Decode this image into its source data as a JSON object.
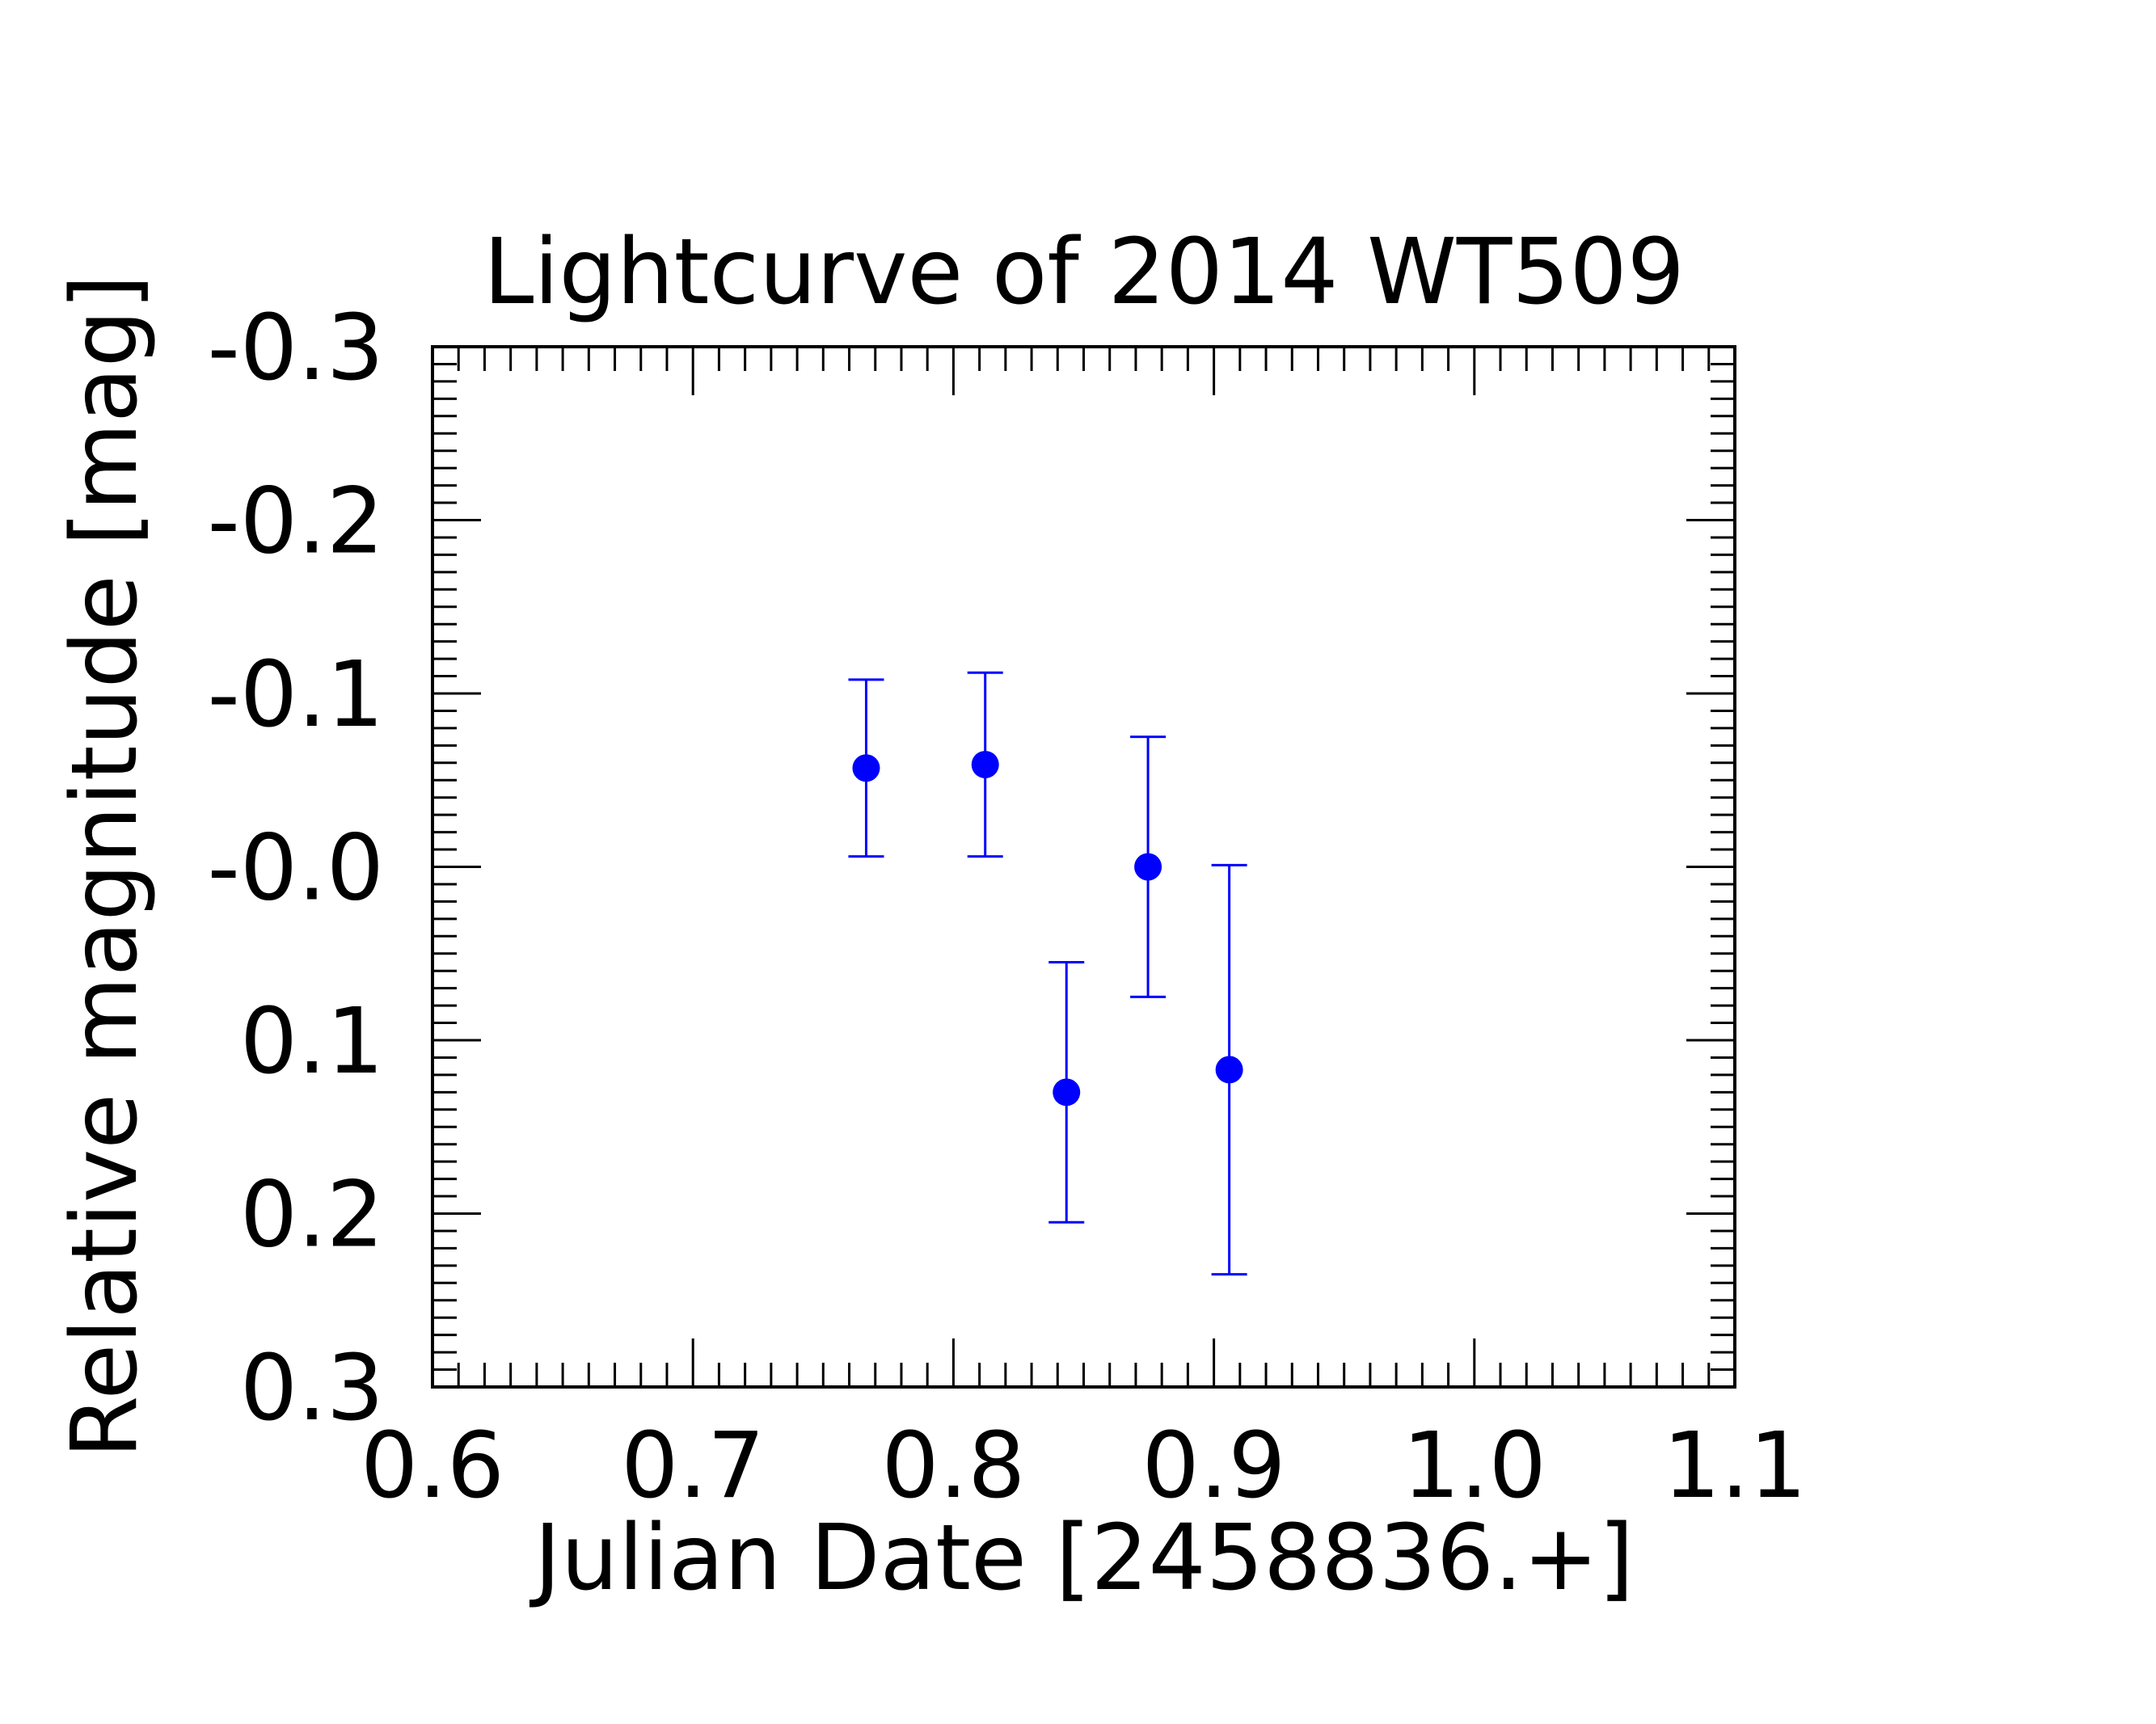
{
  "chart_data": {
    "type": "scatter",
    "title": "Lightcurve of 2014 WT509",
    "xlabel": "Julian Date [2458836.+]",
    "ylabel": "Relative magnitude [mag]",
    "xlim": [
      0.6,
      1.1
    ],
    "ylim": [
      0.3,
      -0.3
    ],
    "y_inverted": true,
    "grid": false,
    "x_ticks": [
      "0.6",
      "0.7",
      "0.8",
      "0.9",
      "1.0",
      "1.1"
    ],
    "y_ticks": [
      "-0.3",
      "-0.2",
      "-0.1",
      "-0.0",
      "0.1",
      "0.2",
      "0.3"
    ],
    "marker_color": "#0000ff",
    "points": [
      {
        "x": 0.7665,
        "y": -0.057,
        "yerr": 0.051
      },
      {
        "x": 0.8122,
        "y": -0.059,
        "yerr": 0.053
      },
      {
        "x": 0.8434,
        "y": 0.13,
        "yerr": 0.075
      },
      {
        "x": 0.8747,
        "y": 0.0,
        "yerr": 0.075
      },
      {
        "x": 0.9059,
        "y": 0.117,
        "yerr": 0.118
      }
    ]
  }
}
